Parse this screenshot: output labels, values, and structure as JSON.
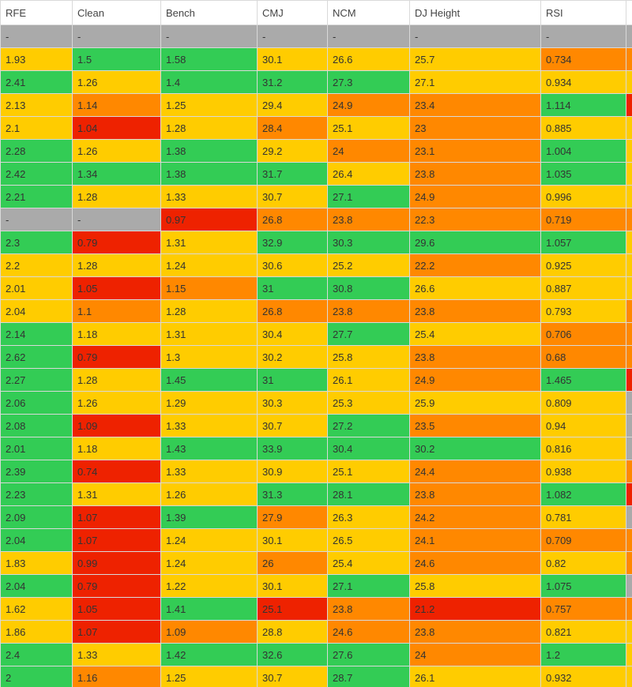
{
  "columns": [
    "RFE",
    "Clean",
    "Bench",
    "CMJ",
    "NCM",
    "DJ Height",
    "RSI",
    ""
  ],
  "colors": {
    "green": "#33cc55",
    "yellow": "#ffcc00",
    "orange": "#ff8800",
    "red": "#ee2200",
    "gray": "#aaaaaa"
  },
  "rows": [
    [
      [
        "-",
        "gray"
      ],
      [
        "-",
        "gray"
      ],
      [
        "-",
        "gray"
      ],
      [
        "-",
        "gray"
      ],
      [
        "-",
        "gray"
      ],
      [
        "-",
        "gray"
      ],
      [
        "-",
        "gray"
      ],
      [
        "",
        "gray"
      ]
    ],
    [
      [
        "1.93",
        "yellow"
      ],
      [
        "1.5",
        "green"
      ],
      [
        "1.58",
        "green"
      ],
      [
        "30.1",
        "yellow"
      ],
      [
        "26.6",
        "yellow"
      ],
      [
        "25.7",
        "yellow"
      ],
      [
        "0.734",
        "orange"
      ],
      [
        "",
        "orange"
      ]
    ],
    [
      [
        "2.41",
        "green"
      ],
      [
        "1.26",
        "yellow"
      ],
      [
        "1.4",
        "green"
      ],
      [
        "31.2",
        "green"
      ],
      [
        "27.3",
        "green"
      ],
      [
        "27.1",
        "yellow"
      ],
      [
        "0.934",
        "yellow"
      ],
      [
        "",
        "yellow"
      ]
    ],
    [
      [
        "2.13",
        "yellow"
      ],
      [
        "1.14",
        "orange"
      ],
      [
        "1.25",
        "yellow"
      ],
      [
        "29.4",
        "yellow"
      ],
      [
        "24.9",
        "orange"
      ],
      [
        "23.4",
        "orange"
      ],
      [
        "1.114",
        "green"
      ],
      [
        "",
        "red"
      ]
    ],
    [
      [
        "2.1",
        "yellow"
      ],
      [
        "1.04",
        "red"
      ],
      [
        "1.28",
        "yellow"
      ],
      [
        "28.4",
        "orange"
      ],
      [
        "25.1",
        "yellow"
      ],
      [
        "23",
        "orange"
      ],
      [
        "0.885",
        "yellow"
      ],
      [
        "",
        "yellow"
      ]
    ],
    [
      [
        "2.28",
        "green"
      ],
      [
        "1.26",
        "yellow"
      ],
      [
        "1.38",
        "green"
      ],
      [
        "29.2",
        "yellow"
      ],
      [
        "24",
        "orange"
      ],
      [
        "23.1",
        "orange"
      ],
      [
        "1.004",
        "green"
      ],
      [
        "",
        "yellow"
      ]
    ],
    [
      [
        "2.42",
        "green"
      ],
      [
        "1.34",
        "green"
      ],
      [
        "1.38",
        "green"
      ],
      [
        "31.7",
        "green"
      ],
      [
        "26.4",
        "yellow"
      ],
      [
        "23.8",
        "orange"
      ],
      [
        "1.035",
        "green"
      ],
      [
        "",
        "yellow"
      ]
    ],
    [
      [
        "2.21",
        "green"
      ],
      [
        "1.28",
        "yellow"
      ],
      [
        "1.33",
        "yellow"
      ],
      [
        "30.7",
        "yellow"
      ],
      [
        "27.1",
        "green"
      ],
      [
        "24.9",
        "orange"
      ],
      [
        "0.996",
        "yellow"
      ],
      [
        "",
        "yellow"
      ]
    ],
    [
      [
        "-",
        "gray"
      ],
      [
        "-",
        "gray"
      ],
      [
        "0.97",
        "red"
      ],
      [
        "26.8",
        "orange"
      ],
      [
        "23.8",
        "orange"
      ],
      [
        "22.3",
        "orange"
      ],
      [
        "0.719",
        "orange"
      ],
      [
        "",
        "orange"
      ]
    ],
    [
      [
        "2.3",
        "green"
      ],
      [
        "0.79",
        "red"
      ],
      [
        "1.31",
        "yellow"
      ],
      [
        "32.9",
        "green"
      ],
      [
        "30.3",
        "green"
      ],
      [
        "29.6",
        "green"
      ],
      [
        "1.057",
        "green"
      ],
      [
        "",
        "yellow"
      ]
    ],
    [
      [
        "2.2",
        "yellow"
      ],
      [
        "1.28",
        "yellow"
      ],
      [
        "1.24",
        "yellow"
      ],
      [
        "30.6",
        "yellow"
      ],
      [
        "25.2",
        "yellow"
      ],
      [
        "22.2",
        "orange"
      ],
      [
        "0.925",
        "yellow"
      ],
      [
        "",
        "yellow"
      ]
    ],
    [
      [
        "2.01",
        "yellow"
      ],
      [
        "1.05",
        "red"
      ],
      [
        "1.15",
        "orange"
      ],
      [
        "31",
        "green"
      ],
      [
        "30.8",
        "green"
      ],
      [
        "26.6",
        "yellow"
      ],
      [
        "0.887",
        "yellow"
      ],
      [
        "",
        "yellow"
      ]
    ],
    [
      [
        "2.04",
        "yellow"
      ],
      [
        "1.1",
        "orange"
      ],
      [
        "1.28",
        "yellow"
      ],
      [
        "26.8",
        "orange"
      ],
      [
        "23.8",
        "orange"
      ],
      [
        "23.8",
        "orange"
      ],
      [
        "0.793",
        "yellow"
      ],
      [
        "",
        "orange"
      ]
    ],
    [
      [
        "2.14",
        "green"
      ],
      [
        "1.18",
        "yellow"
      ],
      [
        "1.31",
        "yellow"
      ],
      [
        "30.4",
        "yellow"
      ],
      [
        "27.7",
        "green"
      ],
      [
        "25.4",
        "yellow"
      ],
      [
        "0.706",
        "orange"
      ],
      [
        "",
        "orange"
      ]
    ],
    [
      [
        "2.62",
        "green"
      ],
      [
        "0.79",
        "red"
      ],
      [
        "1.3",
        "yellow"
      ],
      [
        "30.2",
        "yellow"
      ],
      [
        "25.8",
        "yellow"
      ],
      [
        "23.8",
        "orange"
      ],
      [
        "0.68",
        "orange"
      ],
      [
        "",
        "orange"
      ]
    ],
    [
      [
        "2.27",
        "green"
      ],
      [
        "1.28",
        "yellow"
      ],
      [
        "1.45",
        "green"
      ],
      [
        "31",
        "green"
      ],
      [
        "26.1",
        "yellow"
      ],
      [
        "24.9",
        "orange"
      ],
      [
        "1.465",
        "green"
      ],
      [
        "",
        "red"
      ]
    ],
    [
      [
        "2.06",
        "green"
      ],
      [
        "1.26",
        "yellow"
      ],
      [
        "1.29",
        "yellow"
      ],
      [
        "30.3",
        "yellow"
      ],
      [
        "25.3",
        "yellow"
      ],
      [
        "25.9",
        "yellow"
      ],
      [
        "0.809",
        "yellow"
      ],
      [
        "",
        "gray"
      ]
    ],
    [
      [
        "2.08",
        "green"
      ],
      [
        "1.09",
        "red"
      ],
      [
        "1.33",
        "yellow"
      ],
      [
        "30.7",
        "yellow"
      ],
      [
        "27.2",
        "green"
      ],
      [
        "23.5",
        "orange"
      ],
      [
        "0.94",
        "yellow"
      ],
      [
        "",
        "gray"
      ]
    ],
    [
      [
        "2.01",
        "green"
      ],
      [
        "1.18",
        "yellow"
      ],
      [
        "1.43",
        "green"
      ],
      [
        "33.9",
        "green"
      ],
      [
        "30.4",
        "green"
      ],
      [
        "30.2",
        "green"
      ],
      [
        "0.816",
        "yellow"
      ],
      [
        "",
        "gray"
      ]
    ],
    [
      [
        "2.39",
        "green"
      ],
      [
        "0.74",
        "red"
      ],
      [
        "1.33",
        "yellow"
      ],
      [
        "30.9",
        "yellow"
      ],
      [
        "25.1",
        "yellow"
      ],
      [
        "24.4",
        "orange"
      ],
      [
        "0.938",
        "yellow"
      ],
      [
        "",
        "orange"
      ]
    ],
    [
      [
        "2.23",
        "green"
      ],
      [
        "1.31",
        "yellow"
      ],
      [
        "1.26",
        "yellow"
      ],
      [
        "31.3",
        "green"
      ],
      [
        "28.1",
        "green"
      ],
      [
        "23.8",
        "orange"
      ],
      [
        "1.082",
        "green"
      ],
      [
        "",
        "red"
      ]
    ],
    [
      [
        "2.09",
        "green"
      ],
      [
        "1.07",
        "red"
      ],
      [
        "1.39",
        "green"
      ],
      [
        "27.9",
        "orange"
      ],
      [
        "26.3",
        "yellow"
      ],
      [
        "24.2",
        "orange"
      ],
      [
        "0.781",
        "yellow"
      ],
      [
        "",
        "gray"
      ]
    ],
    [
      [
        "2.04",
        "green"
      ],
      [
        "1.07",
        "red"
      ],
      [
        "1.24",
        "yellow"
      ],
      [
        "30.1",
        "yellow"
      ],
      [
        "26.5",
        "yellow"
      ],
      [
        "24.1",
        "orange"
      ],
      [
        "0.709",
        "orange"
      ],
      [
        "",
        "orange"
      ]
    ],
    [
      [
        "1.83",
        "yellow"
      ],
      [
        "0.99",
        "red"
      ],
      [
        "1.24",
        "yellow"
      ],
      [
        "26",
        "orange"
      ],
      [
        "25.4",
        "yellow"
      ],
      [
        "24.6",
        "orange"
      ],
      [
        "0.82",
        "yellow"
      ],
      [
        "",
        "orange"
      ]
    ],
    [
      [
        "2.04",
        "green"
      ],
      [
        "0.79",
        "red"
      ],
      [
        "1.22",
        "yellow"
      ],
      [
        "30.1",
        "yellow"
      ],
      [
        "27.1",
        "green"
      ],
      [
        "25.8",
        "yellow"
      ],
      [
        "1.075",
        "green"
      ],
      [
        "",
        "gray"
      ]
    ],
    [
      [
        "1.62",
        "yellow"
      ],
      [
        "1.05",
        "red"
      ],
      [
        "1.41",
        "green"
      ],
      [
        "25.1",
        "red"
      ],
      [
        "23.8",
        "orange"
      ],
      [
        "21.2",
        "red"
      ],
      [
        "0.757",
        "orange"
      ],
      [
        "",
        "orange"
      ]
    ],
    [
      [
        "1.86",
        "yellow"
      ],
      [
        "1.07",
        "red"
      ],
      [
        "1.09",
        "orange"
      ],
      [
        "28.8",
        "yellow"
      ],
      [
        "24.6",
        "orange"
      ],
      [
        "23.8",
        "orange"
      ],
      [
        "0.821",
        "yellow"
      ],
      [
        "",
        "yellow"
      ]
    ],
    [
      [
        "2.4",
        "green"
      ],
      [
        "1.33",
        "yellow"
      ],
      [
        "1.42",
        "green"
      ],
      [
        "32.6",
        "green"
      ],
      [
        "27.6",
        "green"
      ],
      [
        "24",
        "orange"
      ],
      [
        "1.2",
        "green"
      ],
      [
        "",
        "yellow"
      ]
    ],
    [
      [
        "2",
        "green"
      ],
      [
        "1.16",
        "orange"
      ],
      [
        "1.25",
        "yellow"
      ],
      [
        "30.7",
        "yellow"
      ],
      [
        "28.7",
        "green"
      ],
      [
        "26.1",
        "yellow"
      ],
      [
        "0.932",
        "yellow"
      ],
      [
        "",
        "yellow"
      ]
    ]
  ]
}
